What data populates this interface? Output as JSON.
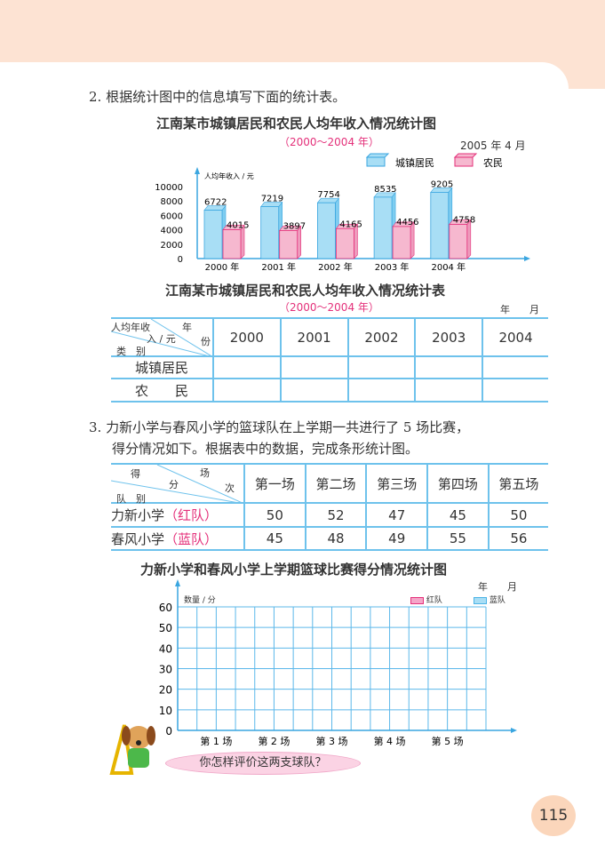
{
  "q2": {
    "number": "2.",
    "text": "根据统计图中的信息填写下面的统计表。"
  },
  "chart1": {
    "title": "江南某市城镇居民和农民人均年收入情况统计图",
    "subtitle": "（2000～2004 年）",
    "date": "2005 年 4 月"
  },
  "table1": {
    "title": "江南某市城镇居民和农民人均年收入情况统计表",
    "subtitle": "（2000～2004 年）",
    "date": "年　　月",
    "corner": {
      "top": "年",
      "right": "份",
      "mid1": "人均年收",
      "mid2": "入 / 元",
      "bottom": "类　别"
    },
    "years": [
      "2000",
      "2001",
      "2002",
      "2003",
      "2004"
    ],
    "rows": [
      "城镇居民",
      "农　　民"
    ]
  },
  "q3": {
    "number": "3.",
    "line1": "力新小学与春风小学的篮球队在上学期一共进行了 5 场比赛，",
    "line2": "得分情况如下。根据表中的数据，完成条形统计图。"
  },
  "table2": {
    "corner": {
      "top": "场",
      "right": "次",
      "mid1": "得",
      "mid2": "分",
      "bottom": "队　别"
    },
    "games": [
      "第一场",
      "第二场",
      "第三场",
      "第四场",
      "第五场"
    ],
    "rows": [
      {
        "label": "力新小学",
        "team": "（红队）",
        "scores": [
          "50",
          "52",
          "47",
          "45",
          "50"
        ]
      },
      {
        "label": "春风小学",
        "team": "（蓝队）",
        "scores": [
          "45",
          "48",
          "49",
          "55",
          "56"
        ]
      }
    ]
  },
  "chart2": {
    "title": "力新小学和春风小学上学期篮球比赛得分情况统计图",
    "date": "年　　月",
    "ylabel": "数量 / 分",
    "yticks": [
      "0",
      "10",
      "20",
      "30",
      "40",
      "50",
      "60"
    ],
    "categories": [
      "第 1 场",
      "第 2 场",
      "第 3 场",
      "第 4 场",
      "第 5 场"
    ],
    "legend": [
      "红队",
      "蓝队"
    ],
    "ylim": [
      0,
      60
    ]
  },
  "bubble": "你怎样评价这两支球队？",
  "page_number": "115",
  "chart_data": {
    "type": "bar",
    "title": "江南某市城镇居民和农民人均年收入情况统计图",
    "subtitle": "（2000～2004 年）",
    "ylabel": "人均年收入 / 元",
    "categories": [
      "2000 年",
      "2001 年",
      "2002 年",
      "2003 年",
      "2004 年"
    ],
    "yticks": [
      "0",
      "2000",
      "4000",
      "6000",
      "8000",
      "10000"
    ],
    "ylim": [
      0,
      10000
    ],
    "legend_position": "top-right",
    "series": [
      {
        "name": "城镇居民",
        "color": "#a8def5",
        "values": [
          6722,
          7219,
          7754,
          8535,
          9205
        ]
      },
      {
        "name": "农民",
        "color": "#f6b8cf",
        "values": [
          4015,
          3897,
          4165,
          4456,
          4758
        ]
      }
    ]
  }
}
